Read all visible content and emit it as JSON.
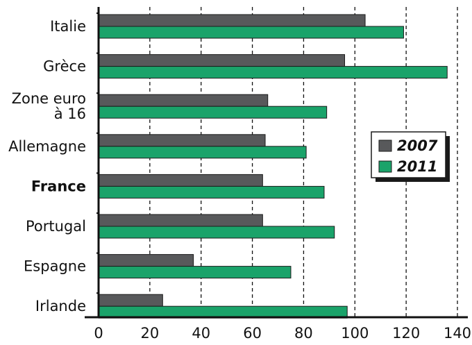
{
  "chart_data": {
    "type": "bar",
    "orientation": "horizontal",
    "categories": [
      "Italie",
      "Grèce",
      "Zone euro à 16",
      "Allemagne",
      "France",
      "Portugal",
      "Espagne",
      "Irlande"
    ],
    "category_lines": [
      [
        "Italie"
      ],
      [
        "Grèce"
      ],
      [
        "Zone euro",
        "à 16"
      ],
      [
        "Allemagne"
      ],
      [
        "France"
      ],
      [
        "Portugal"
      ],
      [
        "Espagne"
      ],
      [
        "Irlande"
      ]
    ],
    "highlighted_category": "France",
    "series": [
      {
        "name": "2007",
        "values": [
          104,
          96,
          66,
          65,
          64,
          64,
          37,
          25
        ],
        "color": "#58595b"
      },
      {
        "name": "2011",
        "values": [
          119,
          136,
          89,
          81,
          88,
          92,
          75,
          97
        ],
        "color": "#1aa36a"
      }
    ],
    "xlim": [
      0,
      140
    ],
    "x_ticks": [
      0,
      20,
      40,
      60,
      80,
      100,
      120,
      140
    ],
    "x_tick_labels": [
      "0",
      "20",
      "40",
      "60",
      "80",
      "100",
      "120",
      "140"
    ],
    "grid": "vertical dashed",
    "legend": {
      "position": "right",
      "entries": [
        "2007",
        "2011"
      ]
    }
  }
}
